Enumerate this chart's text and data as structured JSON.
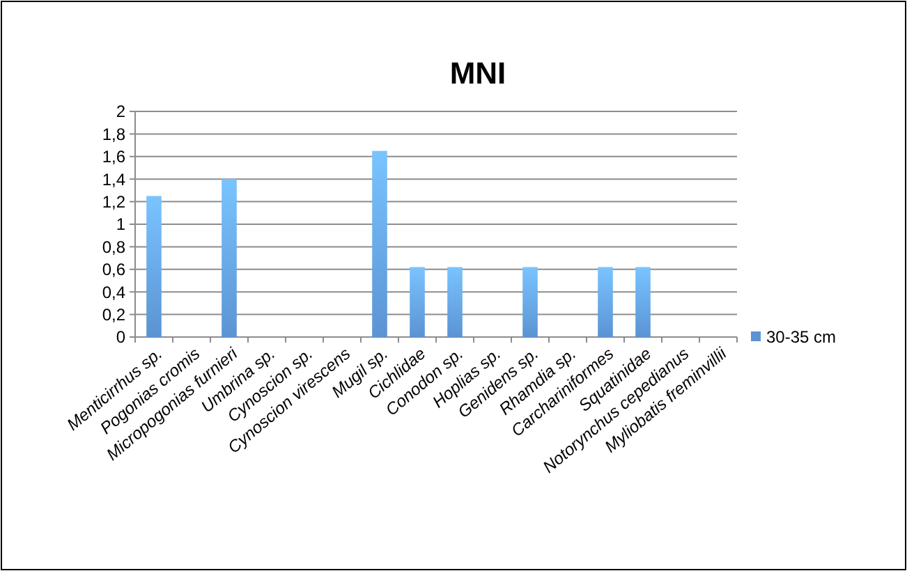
{
  "chart_data": {
    "type": "bar",
    "title": "MNI",
    "categories": [
      "Menticirrhus sp.",
      "Pogonias cromis",
      "Micropogonias furnieri",
      "Umbrina sp.",
      "Cynoscion sp.",
      "Cynoscion virescens",
      "Mugil sp.",
      "Cichlidae",
      "Conodon sp.",
      "Hoplias sp.",
      "Genidens sp.",
      "Rhamdia sp.",
      "Carchariniformes",
      "Squatinidae",
      "Notorynchus cepedianus",
      "Myliobatis freminvillii"
    ],
    "series": [
      {
        "name": "30-35 cm",
        "color": "#5b93d3",
        "values": [
          1.25,
          0,
          1.4,
          0,
          0,
          0,
          1.65,
          0.62,
          0.62,
          0,
          0.62,
          0,
          0.62,
          0.62,
          0,
          0
        ]
      }
    ],
    "ylim": [
      0,
      2
    ],
    "yticks": [
      0,
      {
        "value": 0.2,
        "label": "0,2"
      },
      {
        "value": 0.4,
        "label": "0,4"
      },
      {
        "value": 0.6,
        "label": "0,6"
      },
      {
        "value": 0.8,
        "label": "0,8"
      },
      1,
      {
        "value": 1.2,
        "label": "1,2"
      },
      {
        "value": 1.4,
        "label": "1,4"
      },
      {
        "value": 1.6,
        "label": "1,6"
      },
      {
        "value": 1.8,
        "label": "1,8"
      },
      2
    ],
    "grid": "y",
    "legend": "right"
  }
}
